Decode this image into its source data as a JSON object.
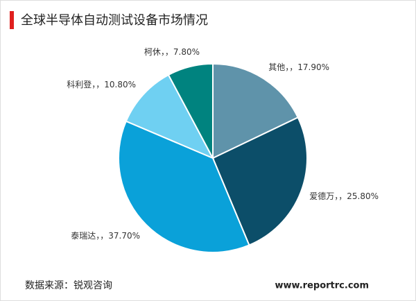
{
  "chart_data": {
    "type": "pie",
    "title": "全球半导体自动测试设备市场情况",
    "categories": [
      "其他",
      "爱德万",
      "泰瑞达",
      "科利登",
      "柯休"
    ],
    "values": [
      17.9,
      25.8,
      37.7,
      10.8,
      7.8
    ],
    "value_labels": [
      "，，17.90%",
      "，，25.80%",
      "，，37.70%",
      "，，10.80%",
      "，，7.80%"
    ],
    "colors": [
      "#5f93aa",
      "#0c4e69",
      "#0aa1d9",
      "#6fd0f2",
      "#00837f"
    ],
    "source": "数据来源：锐观咨询",
    "website": "www.reportrc.com"
  }
}
